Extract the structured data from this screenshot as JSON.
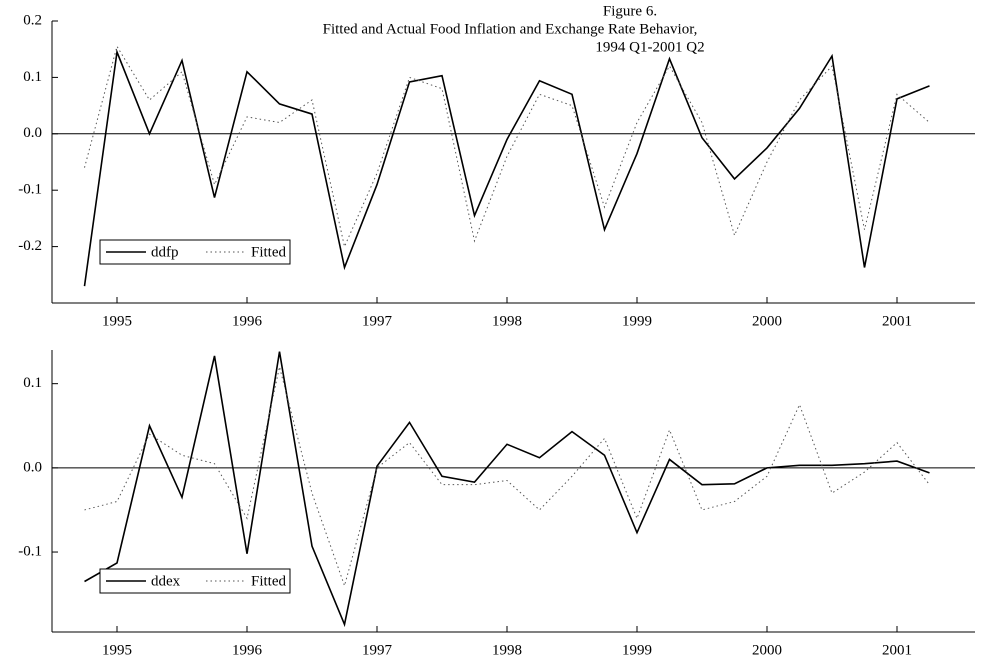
{
  "chart_data": [
    {
      "type": "line",
      "title": "Figure 6.",
      "subtitle": [
        "Fitted and Actual Food Inflation and Exchange Rate Behavior,",
        "1994 Q1-2001 Q2"
      ],
      "x": [
        1994.75,
        1995,
        1995.25,
        1995.5,
        1995.75,
        1996,
        1996.25,
        1996.5,
        1996.75,
        1997,
        1997.25,
        1997.5,
        1997.75,
        1998,
        1998.25,
        1998.5,
        1998.75,
        1999,
        1999.25,
        1999.5,
        1999.75,
        2000,
        2000.25,
        2000.5,
        2000.75,
        2001,
        2001.25
      ],
      "series": [
        {
          "name": "ddfp",
          "color": "#000000",
          "style": "solid",
          "values": [
            -0.27,
            0.145,
            0.0,
            0.13,
            -0.113,
            0.11,
            0.053,
            0.035,
            -0.237,
            -0.09,
            0.092,
            0.103,
            -0.145,
            -0.01,
            0.094,
            0.07,
            -0.17,
            -0.035,
            0.133,
            -0.007,
            -0.08,
            -0.025,
            0.045,
            0.138,
            -0.237,
            0.062,
            0.085
          ]
        },
        {
          "name": "Fitted",
          "color": "#555555",
          "style": "dotted",
          "values": [
            -0.06,
            0.155,
            0.06,
            0.11,
            -0.09,
            0.03,
            0.02,
            0.06,
            -0.2,
            -0.07,
            0.1,
            0.08,
            -0.19,
            -0.04,
            0.07,
            0.05,
            -0.13,
            0.02,
            0.12,
            0.02,
            -0.18,
            -0.05,
            0.06,
            0.12,
            -0.17,
            0.07,
            0.02
          ]
        }
      ],
      "xlim": [
        1994.5,
        2001.6
      ],
      "xticks": [
        1995,
        1996,
        1997,
        1998,
        1999,
        2000,
        2001
      ],
      "ylim": [
        -0.3,
        0.2
      ],
      "yticks": [
        0.2,
        0.1,
        {
          "value": 0,
          "label": "0.0"
        },
        -0.1,
        -0.2
      ],
      "zero_line": true,
      "legend": "lower-left"
    },
    {
      "type": "line",
      "x": [
        1994.75,
        1995,
        1995.25,
        1995.5,
        1995.75,
        1996,
        1996.25,
        1996.5,
        1996.75,
        1997,
        1997.25,
        1997.5,
        1997.75,
        1998,
        1998.25,
        1998.5,
        1998.75,
        1999,
        1999.25,
        1999.5,
        1999.75,
        2000,
        2000.25,
        2000.5,
        2000.75,
        2001,
        2001.25
      ],
      "series": [
        {
          "name": "ddex",
          "color": "#000000",
          "style": "solid",
          "values": [
            -0.135,
            -0.113,
            0.05,
            -0.035,
            0.133,
            -0.102,
            0.138,
            -0.093,
            -0.186,
            0.002,
            0.054,
            -0.01,
            -0.017,
            0.028,
            0.012,
            0.043,
            0.015,
            -0.077,
            0.01,
            -0.02,
            -0.019,
            0.0,
            0.003,
            0.003,
            0.005,
            0.008,
            -0.006
          ]
        },
        {
          "name": "Fitted",
          "color": "#555555",
          "style": "dotted",
          "values": [
            -0.05,
            -0.04,
            0.04,
            0.015,
            0.005,
            -0.06,
            0.12,
            -0.03,
            -0.14,
            0.0,
            0.03,
            -0.02,
            -0.02,
            -0.015,
            -0.05,
            -0.01,
            0.035,
            -0.06,
            0.045,
            -0.05,
            -0.04,
            -0.01,
            0.075,
            -0.03,
            -0.005,
            0.03,
            -0.02
          ]
        }
      ],
      "xlim": [
        1994.5,
        2001.6
      ],
      "xticks": [
        1995,
        1996,
        1997,
        1998,
        1999,
        2000,
        2001
      ],
      "ylim": [
        -0.195,
        0.14
      ],
      "yticks": [
        0.1,
        {
          "value": 0,
          "label": "0.0"
        },
        -0.1
      ],
      "zero_line": true,
      "legend": "lower-left"
    }
  ]
}
